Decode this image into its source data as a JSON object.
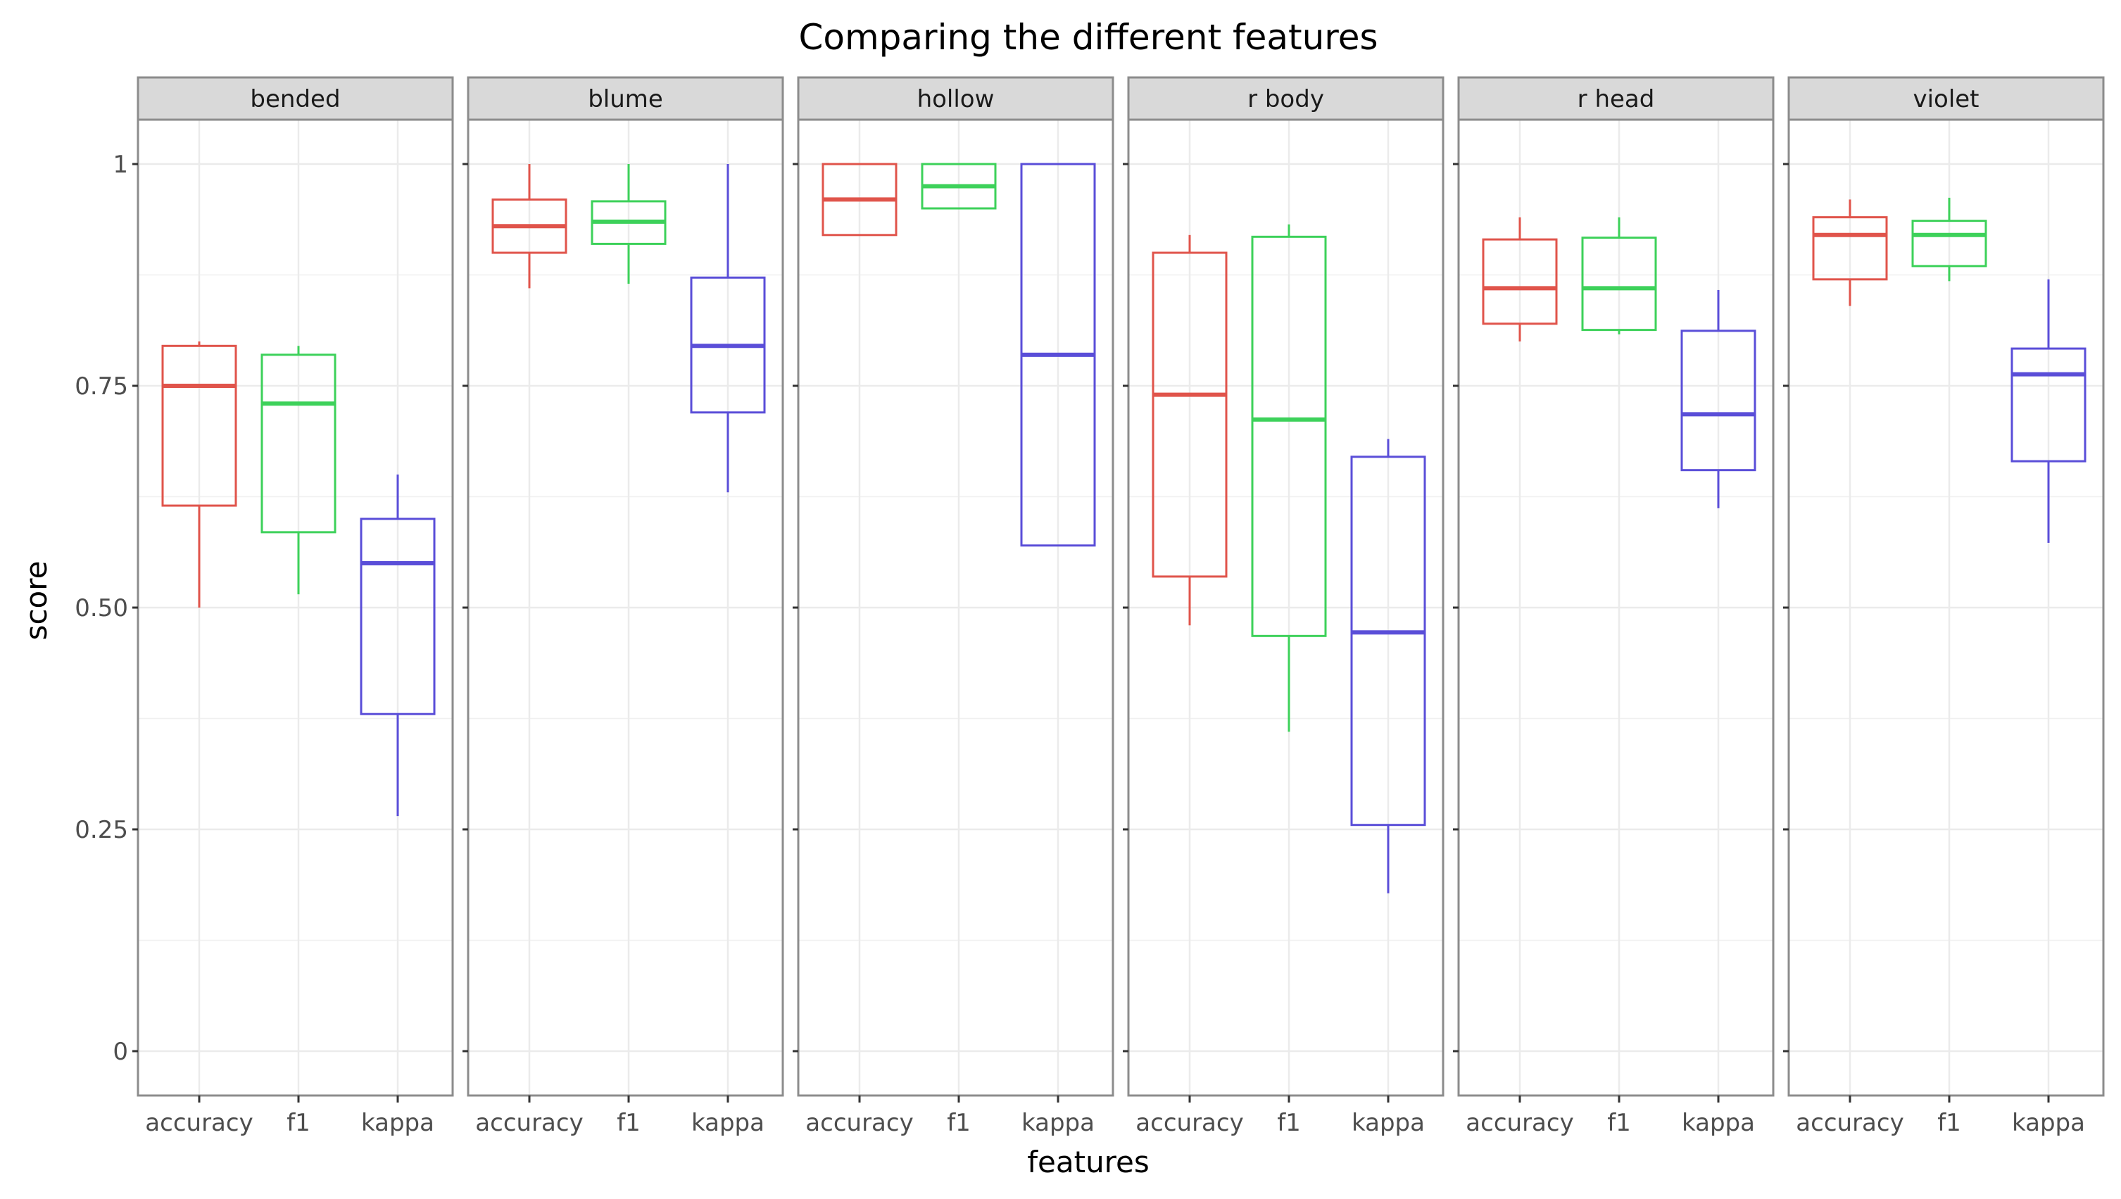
{
  "chart_data": {
    "type": "box",
    "title": "Comparing the different features",
    "xlabel": "features",
    "ylabel": "score",
    "ylim": [
      -0.05,
      1.05
    ],
    "yticks": [
      0,
      0.25,
      0.5,
      0.75,
      1
    ],
    "ytick_labels": [
      "0",
      "0.25",
      "0.50",
      "0.75",
      "1"
    ],
    "categories": [
      "accuracy",
      "f1",
      "kappa"
    ],
    "colors": {
      "accuracy": "#e0544b",
      "f1": "#3dd15a",
      "kappa": "#5a4ed8"
    },
    "grid": true,
    "legend": "none",
    "facets": [
      {
        "name": "bended",
        "boxes": [
          {
            "category": "accuracy",
            "min": 0.5,
            "q1": 0.615,
            "median": 0.75,
            "q3": 0.795,
            "max": 0.8
          },
          {
            "category": "f1",
            "min": 0.515,
            "q1": 0.585,
            "median": 0.73,
            "q3": 0.785,
            "max": 0.795
          },
          {
            "category": "kappa",
            "min": 0.265,
            "q1": 0.38,
            "median": 0.55,
            "q3": 0.6,
            "max": 0.65
          }
        ]
      },
      {
        "name": "blume",
        "boxes": [
          {
            "category": "accuracy",
            "min": 0.86,
            "q1": 0.9,
            "median": 0.93,
            "q3": 0.96,
            "max": 1.0
          },
          {
            "category": "f1",
            "min": 0.865,
            "q1": 0.91,
            "median": 0.935,
            "q3": 0.958,
            "max": 1.0
          },
          {
            "category": "kappa",
            "min": 0.63,
            "q1": 0.72,
            "median": 0.795,
            "q3": 0.872,
            "max": 1.0
          }
        ]
      },
      {
        "name": "hollow",
        "boxes": [
          {
            "category": "accuracy",
            "min": 0.92,
            "q1": 0.92,
            "median": 0.96,
            "q3": 1.0,
            "max": 1.0
          },
          {
            "category": "f1",
            "min": 0.95,
            "q1": 0.95,
            "median": 0.975,
            "q3": 1.0,
            "max": 1.0
          },
          {
            "category": "kappa",
            "min": 0.57,
            "q1": 0.57,
            "median": 0.785,
            "q3": 1.0,
            "max": 1.0
          }
        ]
      },
      {
        "name": "r body",
        "boxes": [
          {
            "category": "accuracy",
            "min": 0.48,
            "q1": 0.535,
            "median": 0.74,
            "q3": 0.9,
            "max": 0.92
          },
          {
            "category": "f1",
            "min": 0.36,
            "q1": 0.468,
            "median": 0.712,
            "q3": 0.918,
            "max": 0.932
          },
          {
            "category": "kappa",
            "min": 0.178,
            "q1": 0.255,
            "median": 0.472,
            "q3": 0.67,
            "max": 0.69
          }
        ]
      },
      {
        "name": "r head",
        "boxes": [
          {
            "category": "accuracy",
            "min": 0.8,
            "q1": 0.82,
            "median": 0.86,
            "q3": 0.915,
            "max": 0.94
          },
          {
            "category": "f1",
            "min": 0.808,
            "q1": 0.813,
            "median": 0.86,
            "q3": 0.917,
            "max": 0.94
          },
          {
            "category": "kappa",
            "min": 0.612,
            "q1": 0.655,
            "median": 0.718,
            "q3": 0.812,
            "max": 0.858
          }
        ]
      },
      {
        "name": "violet",
        "boxes": [
          {
            "category": "accuracy",
            "min": 0.84,
            "q1": 0.87,
            "median": 0.92,
            "q3": 0.94,
            "max": 0.96
          },
          {
            "category": "f1",
            "min": 0.868,
            "q1": 0.885,
            "median": 0.92,
            "q3": 0.936,
            "max": 0.962
          },
          {
            "category": "kappa",
            "min": 0.573,
            "q1": 0.665,
            "median": 0.763,
            "q3": 0.792,
            "max": 0.87
          }
        ]
      }
    ]
  }
}
